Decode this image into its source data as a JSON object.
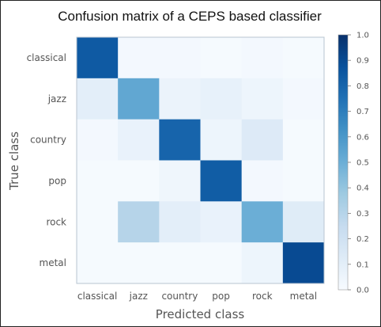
{
  "chart_data": {
    "type": "heatmap",
    "title": "Confusion matrix of a CEPS based classifier",
    "xlabel": "Predicted class",
    "ylabel": "True class",
    "x_categories": [
      "classical",
      "jazz",
      "country",
      "pop",
      "rock",
      "metal"
    ],
    "y_categories": [
      "classical",
      "jazz",
      "country",
      "pop",
      "rock",
      "metal"
    ],
    "values": [
      [
        0.84,
        0.02,
        0.02,
        0.01,
        0.02,
        0.01
      ],
      [
        0.1,
        0.53,
        0.06,
        0.08,
        0.05,
        0.02
      ],
      [
        0.02,
        0.07,
        0.8,
        0.05,
        0.13,
        0.01
      ],
      [
        0.01,
        0.01,
        0.04,
        0.83,
        0.02,
        0.01
      ],
      [
        0.01,
        0.3,
        0.1,
        0.07,
        0.5,
        0.12
      ],
      [
        0.01,
        0.01,
        0.01,
        0.01,
        0.05,
        0.9
      ]
    ],
    "colorbar": {
      "range": [
        0.0,
        1.0
      ],
      "ticks": [
        "0.0",
        "0.1",
        "0.2",
        "0.3",
        "0.4",
        "0.5",
        "0.6",
        "0.7",
        "0.8",
        "0.9",
        "1.0"
      ]
    },
    "colormap": {
      "low": "#f7fbff",
      "high": "#08306b"
    }
  }
}
